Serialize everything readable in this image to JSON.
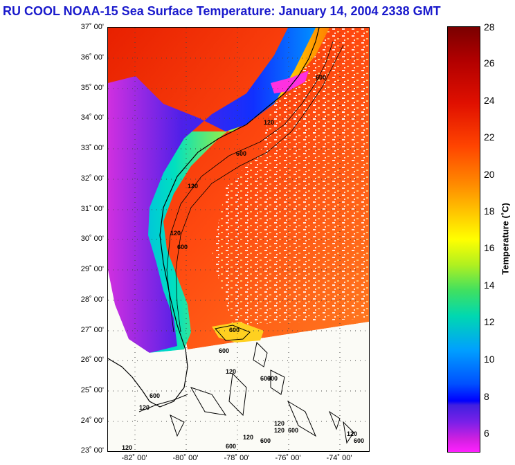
{
  "title": "RU COOL  NOAA-15  Sea Surface Temperature:  January 14, 2004 2338 GMT",
  "latitudes": [
    "37˚ 00'",
    "36˚ 00'",
    "35˚ 00'",
    "34˚ 00'",
    "33˚ 00'",
    "32˚ 00'",
    "31˚ 00'",
    "30˚ 00'",
    "29˚ 00'",
    "28˚ 00'",
    "27˚ 00'",
    "26˚ 00'",
    "25˚ 00'",
    "24˚ 00'",
    "23˚ 00'"
  ],
  "longitudes": [
    "-82˚ 00'",
    "-80˚ 00'",
    "-78˚ 00'",
    "-76˚ 00'",
    "-74˚ 00'"
  ],
  "colorbar": {
    "label": "Temperature (˚C)",
    "ticks": [
      "28",
      "26",
      "24",
      "22",
      "20",
      "18",
      "16",
      "14",
      "12",
      "10",
      "8",
      "6"
    ]
  },
  "isobaths": [
    "120",
    "600",
    "120",
    "600",
    "120",
    "600",
    "600",
    "120",
    "600",
    "120",
    "600",
    "120",
    "600",
    "600",
    "120",
    "600",
    "120",
    "600",
    "120",
    "600",
    "120",
    "600"
  ]
}
